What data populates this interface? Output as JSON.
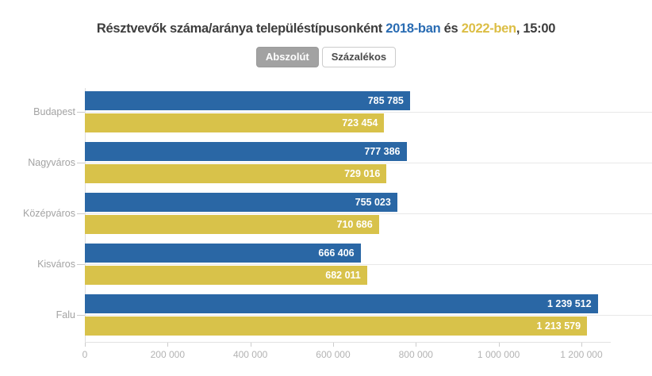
{
  "title": {
    "prefix": "Résztvevők száma/aránya településtípusonként ",
    "year1": "2018-ban",
    "conjunction": " és ",
    "year2": "2022-ben",
    "suffix": ", 15:00"
  },
  "toggle": {
    "absolute_label": "Abszolút",
    "percent_label": "Százalékos",
    "active": "Abszolút"
  },
  "colors": {
    "bar_blue": "#2a67a5",
    "bar_yellow": "#d8c24a",
    "title_blue": "#2a6cb3",
    "title_yellow": "#dcbe45",
    "title_text": "#3d3d3d",
    "axis_label": "#b3b3b3",
    "category_label": "#a3a3a3"
  },
  "chart_data": {
    "type": "bar",
    "orientation": "horizontal",
    "title": "Résztvevők száma/aránya településtípusonként 2018-ban és 2022-ben, 15:00",
    "categories": [
      "Budapest",
      "Nagyváros",
      "Középváros",
      "Kisváros",
      "Falu"
    ],
    "series": [
      {
        "name": "2018",
        "color": "#2a67a5",
        "values": [
          785785,
          777386,
          755023,
          666406,
          1239512
        ],
        "labels": [
          "785 785",
          "777 386",
          "755 023",
          "666 406",
          "1 239 512"
        ]
      },
      {
        "name": "2022",
        "color": "#d8c24a",
        "values": [
          723454,
          729016,
          710686,
          682011,
          1213579
        ],
        "labels": [
          "723 454",
          "729 016",
          "710 686",
          "682 011",
          "1 213 579"
        ]
      }
    ],
    "x_ticks": [
      "0",
      "200 000",
      "400 000",
      "600 000",
      "800 000",
      "1 000 000",
      "1 200 000"
    ],
    "x_tick_values": [
      0,
      200000,
      400000,
      600000,
      800000,
      1000000,
      1200000
    ],
    "xlim": [
      0,
      1271000
    ],
    "value_labels_inside": true,
    "grid": "category-center-lines",
    "legend": "none (years colored in title)"
  }
}
